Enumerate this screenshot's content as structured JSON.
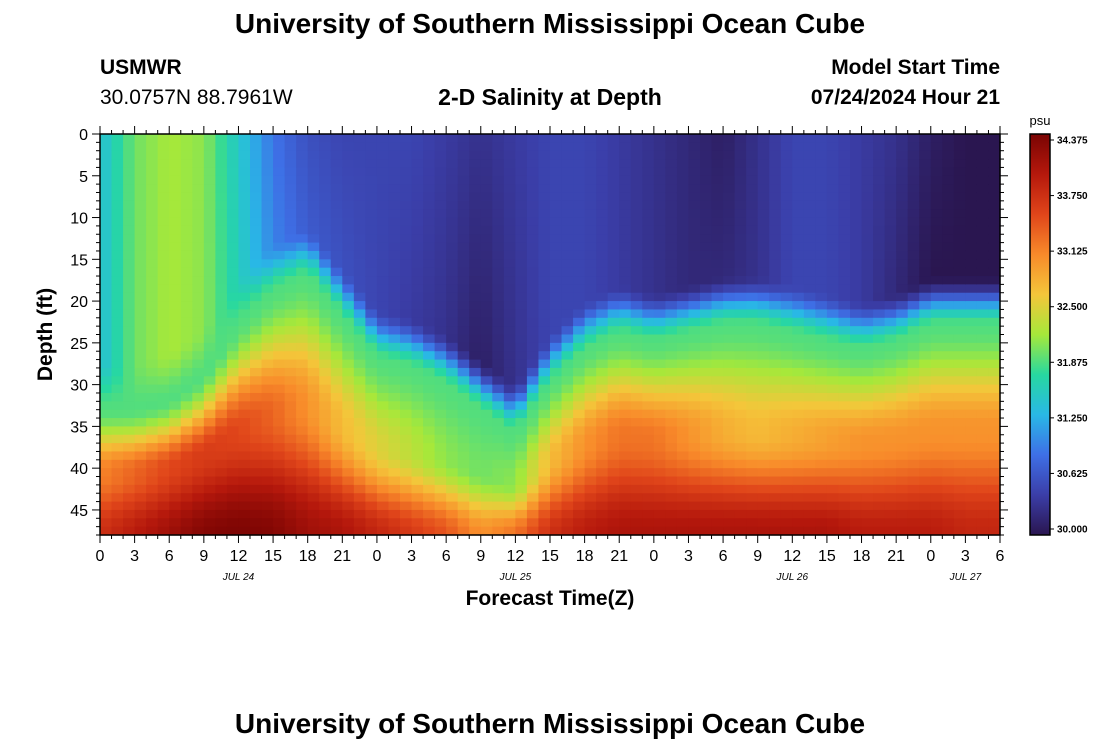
{
  "header": {
    "title": "University of Southern Mississippi Ocean Cube",
    "station": "USMWR",
    "coords": "30.0757N  88.7961W",
    "subtitle": "2-D Salinity at Depth",
    "start_label": "Model Start Time",
    "start_value": "07/24/2024 Hour 21"
  },
  "footer": {
    "title": "University of Southern Mississippi Ocean Cube"
  },
  "chart_data": {
    "type": "heatmap",
    "title": "2-D Salinity at Depth",
    "xlabel": "Forecast Time(Z)",
    "ylabel": "Depth (ft)",
    "x_tick_labels": [
      "0",
      "3",
      "6",
      "9",
      "12",
      "15",
      "18",
      "21",
      "0",
      "3",
      "6",
      "9",
      "12",
      "15",
      "18",
      "21",
      "0",
      "3",
      "6",
      "9",
      "12",
      "15",
      "18",
      "21",
      "0",
      "3",
      "6"
    ],
    "date_labels": [
      {
        "label": "JUL 24",
        "hour_index": 4
      },
      {
        "label": "JUL 25",
        "hour_index": 12
      },
      {
        "label": "JUL 26",
        "hour_index": 20
      },
      {
        "label": "JUL 27",
        "hour_index": 25
      }
    ],
    "y_tick_labels": [
      "0",
      "5",
      "10",
      "15",
      "20",
      "25",
      "30",
      "35",
      "40",
      "45"
    ],
    "x_range_hours": [
      0,
      78
    ],
    "y_range_ft": [
      0,
      48
    ],
    "colorbar": {
      "unit": "psu",
      "min": 30.0,
      "max": 34.375,
      "tick_labels": [
        "34.375",
        "33.750",
        "33.125",
        "32.500",
        "31.875",
        "31.250",
        "30.625",
        "30.000"
      ],
      "colors": [
        "#2a1650",
        "#3b3ea8",
        "#3e6fe6",
        "#29b8e6",
        "#27d8a0",
        "#a6e83a",
        "#f4c63a",
        "#f88a2a",
        "#e0451a",
        "#b5180c",
        "#7a0403"
      ]
    },
    "profile_hours": [
      0,
      3,
      6,
      9,
      12,
      15,
      18,
      21,
      24,
      27,
      30,
      33,
      36,
      39,
      42,
      45,
      48,
      51,
      54,
      57,
      60,
      63,
      66,
      69,
      72,
      75,
      78
    ],
    "halocline_depth_ft": [
      30,
      30,
      29,
      26,
      20,
      16,
      14,
      19,
      24,
      25,
      27,
      30,
      33,
      27,
      23,
      21,
      22,
      21,
      20,
      20,
      21,
      22,
      23,
      22,
      20,
      20,
      20
    ],
    "surface_psu": [
      31.4,
      32.0,
      32.2,
      32.1,
      31.5,
      30.9,
      30.6,
      30.5,
      30.5,
      30.5,
      30.4,
      30.3,
      30.4,
      30.5,
      30.5,
      30.4,
      30.3,
      30.2,
      30.1,
      30.3,
      30.5,
      30.5,
      30.4,
      30.3,
      30.1,
      30.0,
      30.0
    ],
    "mid_upper_psu": [
      31.4,
      32.0,
      32.2,
      32.1,
      31.6,
      31.0,
      30.7,
      30.6,
      30.5,
      30.4,
      30.3,
      30.1,
      30.3,
      30.5,
      30.5,
      30.4,
      30.3,
      30.2,
      30.2,
      30.3,
      30.5,
      30.5,
      30.4,
      30.2,
      30.0,
      30.0,
      30.0
    ],
    "bottom_psu": [
      33.7,
      33.9,
      34.1,
      34.3,
      34.35,
      34.3,
      34.1,
      34.0,
      33.8,
      33.6,
      33.4,
      33.0,
      33.2,
      33.7,
      33.9,
      34.0,
      34.0,
      34.0,
      34.0,
      34.0,
      34.0,
      34.0,
      33.9,
      33.9,
      33.9,
      33.8,
      33.8
    ],
    "lower_mid_psu": [
      33.1,
      33.3,
      33.5,
      33.6,
      33.5,
      33.3,
      33.0,
      32.7,
      32.5,
      32.3,
      32.1,
      32.0,
      32.1,
      32.7,
      33.0,
      33.2,
      33.2,
      33.0,
      32.8,
      32.7,
      32.8,
      32.9,
      33.0,
      33.0,
      33.0,
      33.0,
      33.0
    ]
  }
}
